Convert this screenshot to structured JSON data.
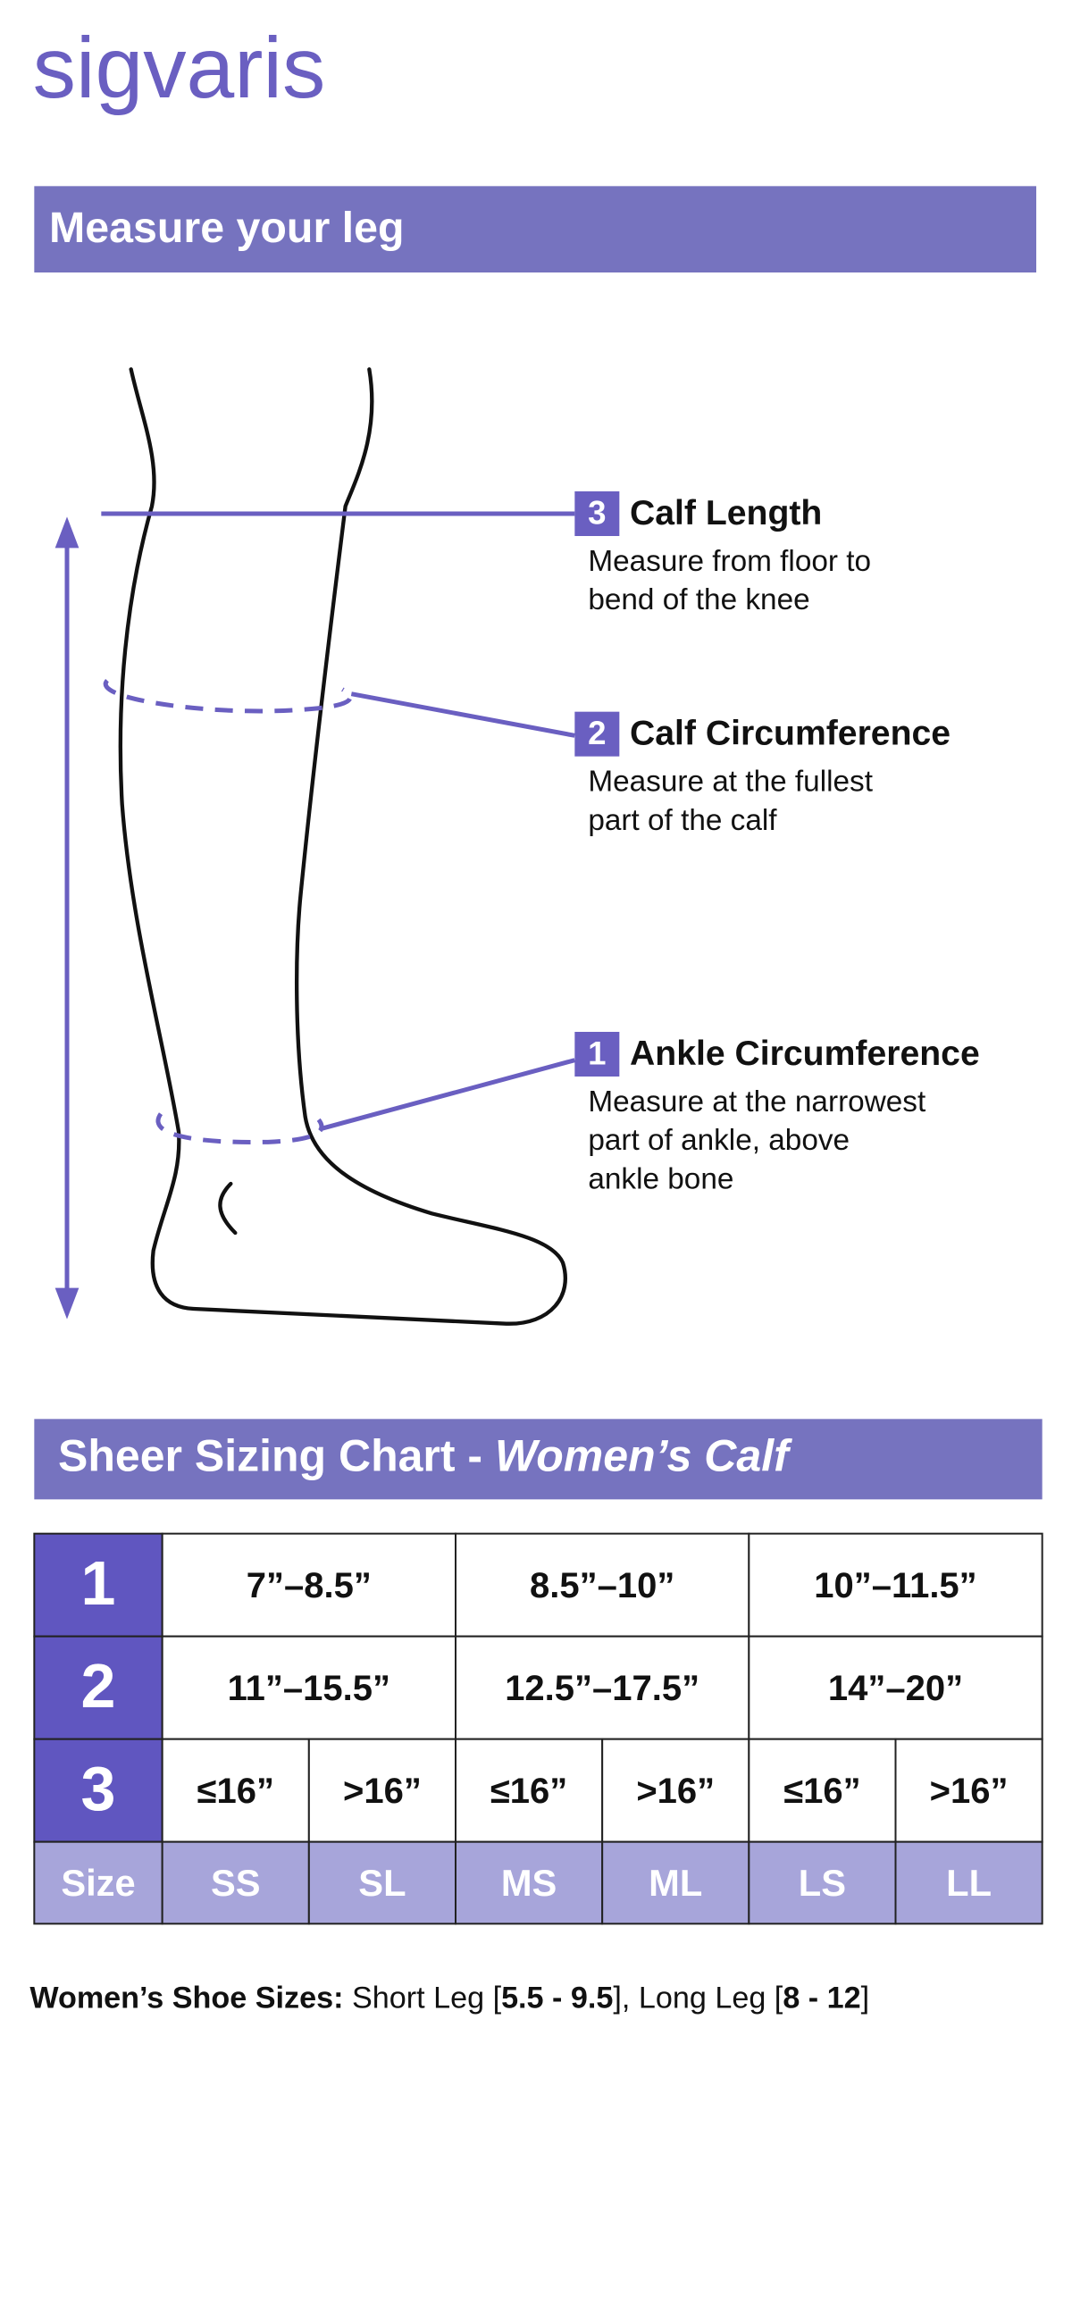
{
  "logo": "sigvaris",
  "header": {
    "title": "Measure your leg"
  },
  "measurements": [
    {
      "number": "3",
      "title": "Calf Length",
      "description": [
        "Measure from floor to",
        "bend of the knee"
      ]
    },
    {
      "number": "2",
      "title": "Calf Circumference",
      "description": [
        "Measure at the fullest",
        "part of the calf"
      ]
    },
    {
      "number": "1",
      "title": "Ankle Circumference",
      "description": [
        "Measure at the narrowest",
        "part of ankle, above",
        "ankle bone"
      ]
    }
  ],
  "chart": {
    "title": "Sheer Sizing Chart - ",
    "title_italic": "Women’s Calf"
  },
  "table": {
    "rows": [
      {
        "label": "1",
        "cells": [
          "7”–8.5”",
          "8.5”–10”",
          "10”–11.5”"
        ]
      },
      {
        "label": "2",
        "cells": [
          "11”–15.5”",
          "12.5”–17.5”",
          "14”–20”"
        ]
      },
      {
        "label": "3",
        "cells": [
          "≤16”",
          ">16”",
          "≤16”",
          ">16”",
          "≤16”",
          ">16”"
        ]
      },
      {
        "label": "Size",
        "cells": [
          "SS",
          "SL",
          "MS",
          "ML",
          "LS",
          "LL"
        ]
      }
    ]
  },
  "footnote": [
    {
      "text": "Women’s Shoe Sizes:",
      "bold": true
    },
    {
      "text": " Short Leg [",
      "bold": false
    },
    {
      "text": "5.5 - 9.5",
      "bold": true
    },
    {
      "text": "], Long Leg [",
      "bold": false
    },
    {
      "text": "8 - 12",
      "bold": true
    },
    {
      "text": "]",
      "bold": false
    }
  ]
}
